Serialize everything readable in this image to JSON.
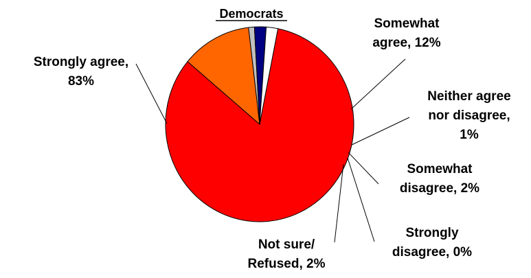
{
  "chart_data": {
    "type": "pie",
    "title": "Democrats",
    "slices": [
      {
        "label": [
          "Strongly agree,",
          "83%"
        ],
        "value": 83,
        "color": "#FF0000"
      },
      {
        "label": [
          "Somewhat",
          "agree, 12%"
        ],
        "value": 12,
        "color": "#FF6600"
      },
      {
        "label": [
          "Neither agree",
          "nor disagree,",
          "1%"
        ],
        "value": 1,
        "color": "#C0C0C0"
      },
      {
        "label": [
          "Somewhat",
          "disagree, 2%"
        ],
        "value": 2,
        "color": "#000080"
      },
      {
        "label": [
          "Strongly",
          "disagree, 0%"
        ],
        "value": 0,
        "color": "#FFFFFF"
      },
      {
        "label": [
          "Not sure/",
          "Refused, 2%"
        ],
        "value": 2,
        "color": "#FFFFFF"
      }
    ]
  }
}
